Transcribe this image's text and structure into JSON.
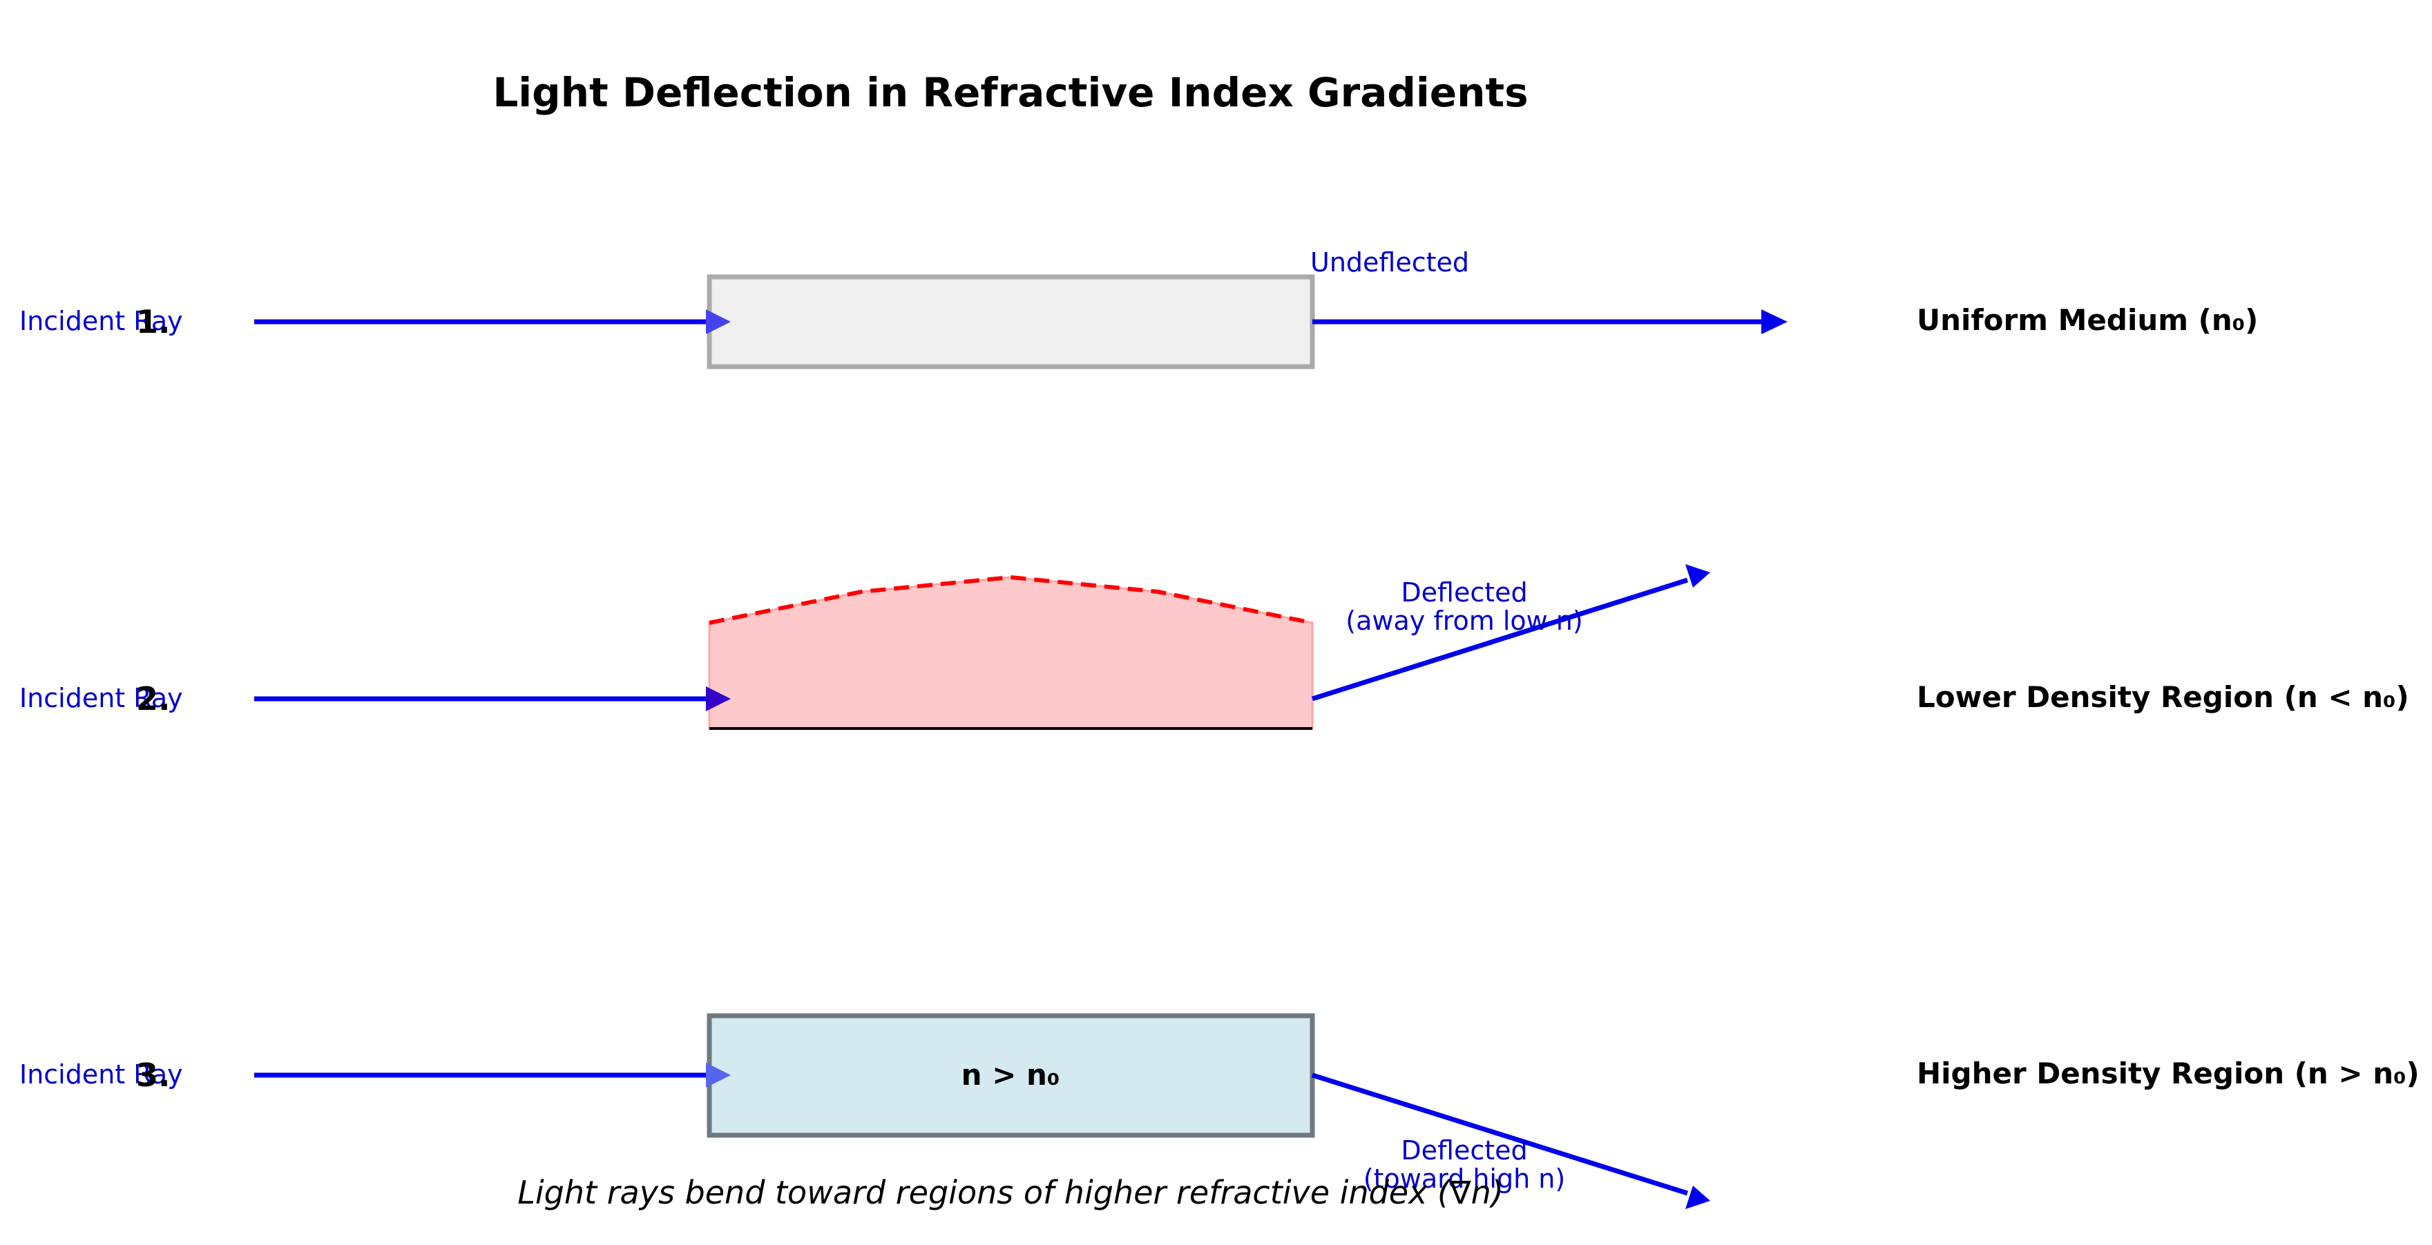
{
  "title": "Light Deflection in Refractive Index Gradients",
  "caption": "Light rays bend toward regions of higher refractive index (∇n)",
  "colors": {
    "ray": "#0000ee",
    "ray_label": "#0000cc",
    "uniform_fill": "#f0f0f0",
    "uniform_stroke": "#aaaaaa",
    "low_density_fill": "#fdc9cb",
    "low_density_boundary": "#ff0000",
    "high_density_fill": "#d4eaf0",
    "high_density_stroke": "#707880"
  },
  "rows": [
    {
      "number": "1.",
      "incident_label": "Incident Ray",
      "region_label": "Uniform Medium (n₀)",
      "region_text": "",
      "outcome_label": "Undeflected"
    },
    {
      "number": "2.",
      "incident_label": "Incident Ray",
      "region_label": "Lower Density Region (n < n₀)",
      "region_text": "",
      "outcome_label_line1": "Deflected",
      "outcome_label_line2": "(away from low n)"
    },
    {
      "number": "3.",
      "incident_label": "Incident Ray",
      "region_label": "Higher Density Region (n > n₀)",
      "region_text": "n > n₀",
      "outcome_label_line1": "Deflected",
      "outcome_label_line2": "(toward high n)"
    }
  ]
}
